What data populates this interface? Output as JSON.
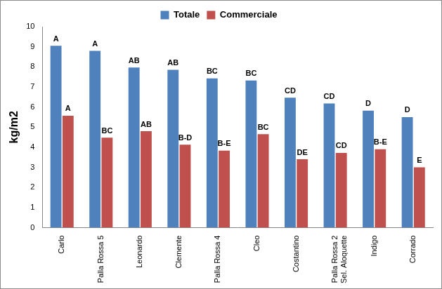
{
  "chart_data": {
    "type": "bar",
    "y_label": "kg/m2",
    "categories": [
      "Carlo",
      "Palla Rossa 5",
      "Leonardo",
      "Clemente",
      "Palla Rossa 4",
      "Cleo",
      "Costantino",
      "Palla Rossa 2 Sel. Aloquette",
      "Indigo",
      "Corrado"
    ],
    "series": [
      {
        "name": "Totale",
        "color": "#4f81bd",
        "values": [
          9.05,
          8.8,
          7.97,
          7.85,
          7.43,
          7.32,
          6.47,
          6.18,
          5.82,
          5.5
        ],
        "letters": [
          "A",
          "A",
          "AB",
          "AB",
          "BC",
          "BC",
          "CD",
          "CD",
          "D",
          "D"
        ]
      },
      {
        "name": "Commerciale",
        "color": "#c0504d",
        "values": [
          5.57,
          4.48,
          4.8,
          4.13,
          3.83,
          4.65,
          3.4,
          3.72,
          3.9,
          3.0
        ],
        "letters": [
          "A",
          "BC",
          "AB",
          "B-D",
          "B-E",
          "BC",
          "DE",
          "CD",
          "B-E",
          "E"
        ]
      }
    ],
    "ylim": [
      0,
      10
    ],
    "yticks": [
      0,
      1,
      2,
      3,
      4,
      5,
      6,
      7,
      8,
      9,
      10
    ],
    "grid": false,
    "legend": "top"
  }
}
